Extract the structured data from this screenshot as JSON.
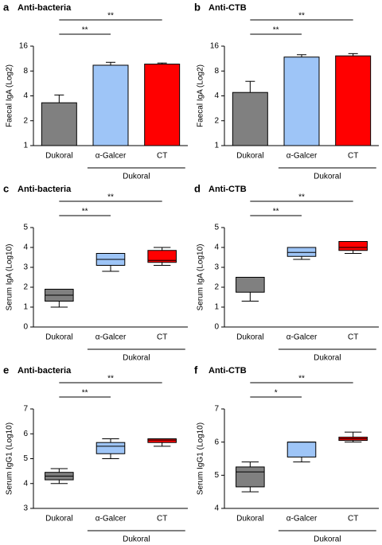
{
  "chart_data": [
    {
      "type": "bar",
      "panel": "a",
      "title": "Anti-bacteria",
      "y_label": "Faecal IgA (Log2)",
      "log_base": 2,
      "categories": [
        "Dukoral",
        "α-Galcer",
        "CT"
      ],
      "group_label": "Dukoral",
      "values": [
        3.3,
        9.4,
        9.7
      ],
      "errors": [
        0.8,
        0.8,
        0.3
      ],
      "colors": [
        "#808080",
        "#9ec5f7",
        "#ff0000"
      ],
      "ylim": [
        1,
        16
      ],
      "yticks": [
        1,
        2,
        4,
        8,
        16
      ],
      "annotations": [
        "**",
        "**"
      ]
    },
    {
      "type": "bar",
      "panel": "b",
      "title": "Anti-CTB",
      "y_label": "Faecal IgA (Log2)",
      "log_base": 2,
      "categories": [
        "Dukoral",
        "α-Galcer",
        "CT"
      ],
      "group_label": "Dukoral",
      "values": [
        4.4,
        11.8,
        12.2
      ],
      "errors": [
        1.6,
        0.8,
        0.8
      ],
      "colors": [
        "#808080",
        "#9ec5f7",
        "#ff0000"
      ],
      "ylim": [
        1,
        16
      ],
      "yticks": [
        1,
        2,
        4,
        8,
        16
      ],
      "annotations": [
        "**",
        "**"
      ]
    },
    {
      "type": "box",
      "panel": "c",
      "title": "Anti-bacteria",
      "y_label": "Serum IgA (Log10)",
      "categories": [
        "Dukoral",
        "α-Galcer",
        "CT"
      ],
      "group_label": "Dukoral",
      "colors": [
        "#808080",
        "#9ec5f7",
        "#ff0000"
      ],
      "min": [
        1.0,
        2.8,
        3.1
      ],
      "q1": [
        1.3,
        3.1,
        3.25
      ],
      "median": [
        1.6,
        3.4,
        3.35
      ],
      "q3": [
        1.9,
        3.7,
        3.85
      ],
      "max": [
        1.9,
        3.7,
        4.0
      ],
      "ylim": [
        0,
        5
      ],
      "yticks": [
        0,
        1,
        2,
        3,
        4,
        5
      ],
      "annotations": [
        "**",
        "**"
      ]
    },
    {
      "type": "box",
      "panel": "d",
      "title": "Anti-CTB",
      "y_label": "Serum IgA (Log10)",
      "categories": [
        "Dukoral",
        "α-Galcer",
        "CT"
      ],
      "group_label": "Dukoral",
      "colors": [
        "#808080",
        "#9ec5f7",
        "#ff0000"
      ],
      "min": [
        1.3,
        3.4,
        3.7
      ],
      "q1": [
        1.75,
        3.55,
        3.85
      ],
      "median": [
        2.5,
        3.75,
        4.0
      ],
      "q3": [
        2.5,
        4.0,
        4.3
      ],
      "max": [
        2.5,
        4.0,
        4.3
      ],
      "ylim": [
        0,
        5
      ],
      "yticks": [
        0,
        1,
        2,
        3,
        4,
        5
      ],
      "annotations": [
        "**",
        "**"
      ]
    },
    {
      "type": "box",
      "panel": "e",
      "title": "Anti-bacteria",
      "y_label": "Serum IgG1 (Log10)",
      "categories": [
        "Dukoral",
        "α-Galcer",
        "CT"
      ],
      "group_label": "Dukoral",
      "colors": [
        "#808080",
        "#9ec5f7",
        "#ff0000"
      ],
      "min": [
        4.0,
        5.0,
        5.5
      ],
      "q1": [
        4.15,
        5.2,
        5.65
      ],
      "median": [
        4.3,
        5.5,
        5.75
      ],
      "q3": [
        4.45,
        5.65,
        5.8
      ],
      "max": [
        4.6,
        5.8,
        5.8
      ],
      "ylim": [
        3,
        7
      ],
      "yticks": [
        3,
        4,
        5,
        6,
        7
      ],
      "annotations": [
        "**",
        "**"
      ]
    },
    {
      "type": "box",
      "panel": "f",
      "title": "Anti-CTB",
      "y_label": "Serum IgG1 (Log10)",
      "categories": [
        "Dukoral",
        "α-Galcer",
        "CT"
      ],
      "group_label": "Dukoral",
      "colors": [
        "#808080",
        "#9ec5f7",
        "#ff0000"
      ],
      "min": [
        4.5,
        5.4,
        6.0
      ],
      "q1": [
        4.65,
        5.55,
        6.05
      ],
      "median": [
        5.1,
        6.0,
        6.1
      ],
      "q3": [
        5.25,
        6.0,
        6.15
      ],
      "max": [
        5.4,
        6.0,
        6.3
      ],
      "ylim": [
        4,
        7
      ],
      "yticks": [
        4,
        5,
        6,
        7
      ],
      "annotations": [
        "*",
        "**"
      ]
    }
  ]
}
